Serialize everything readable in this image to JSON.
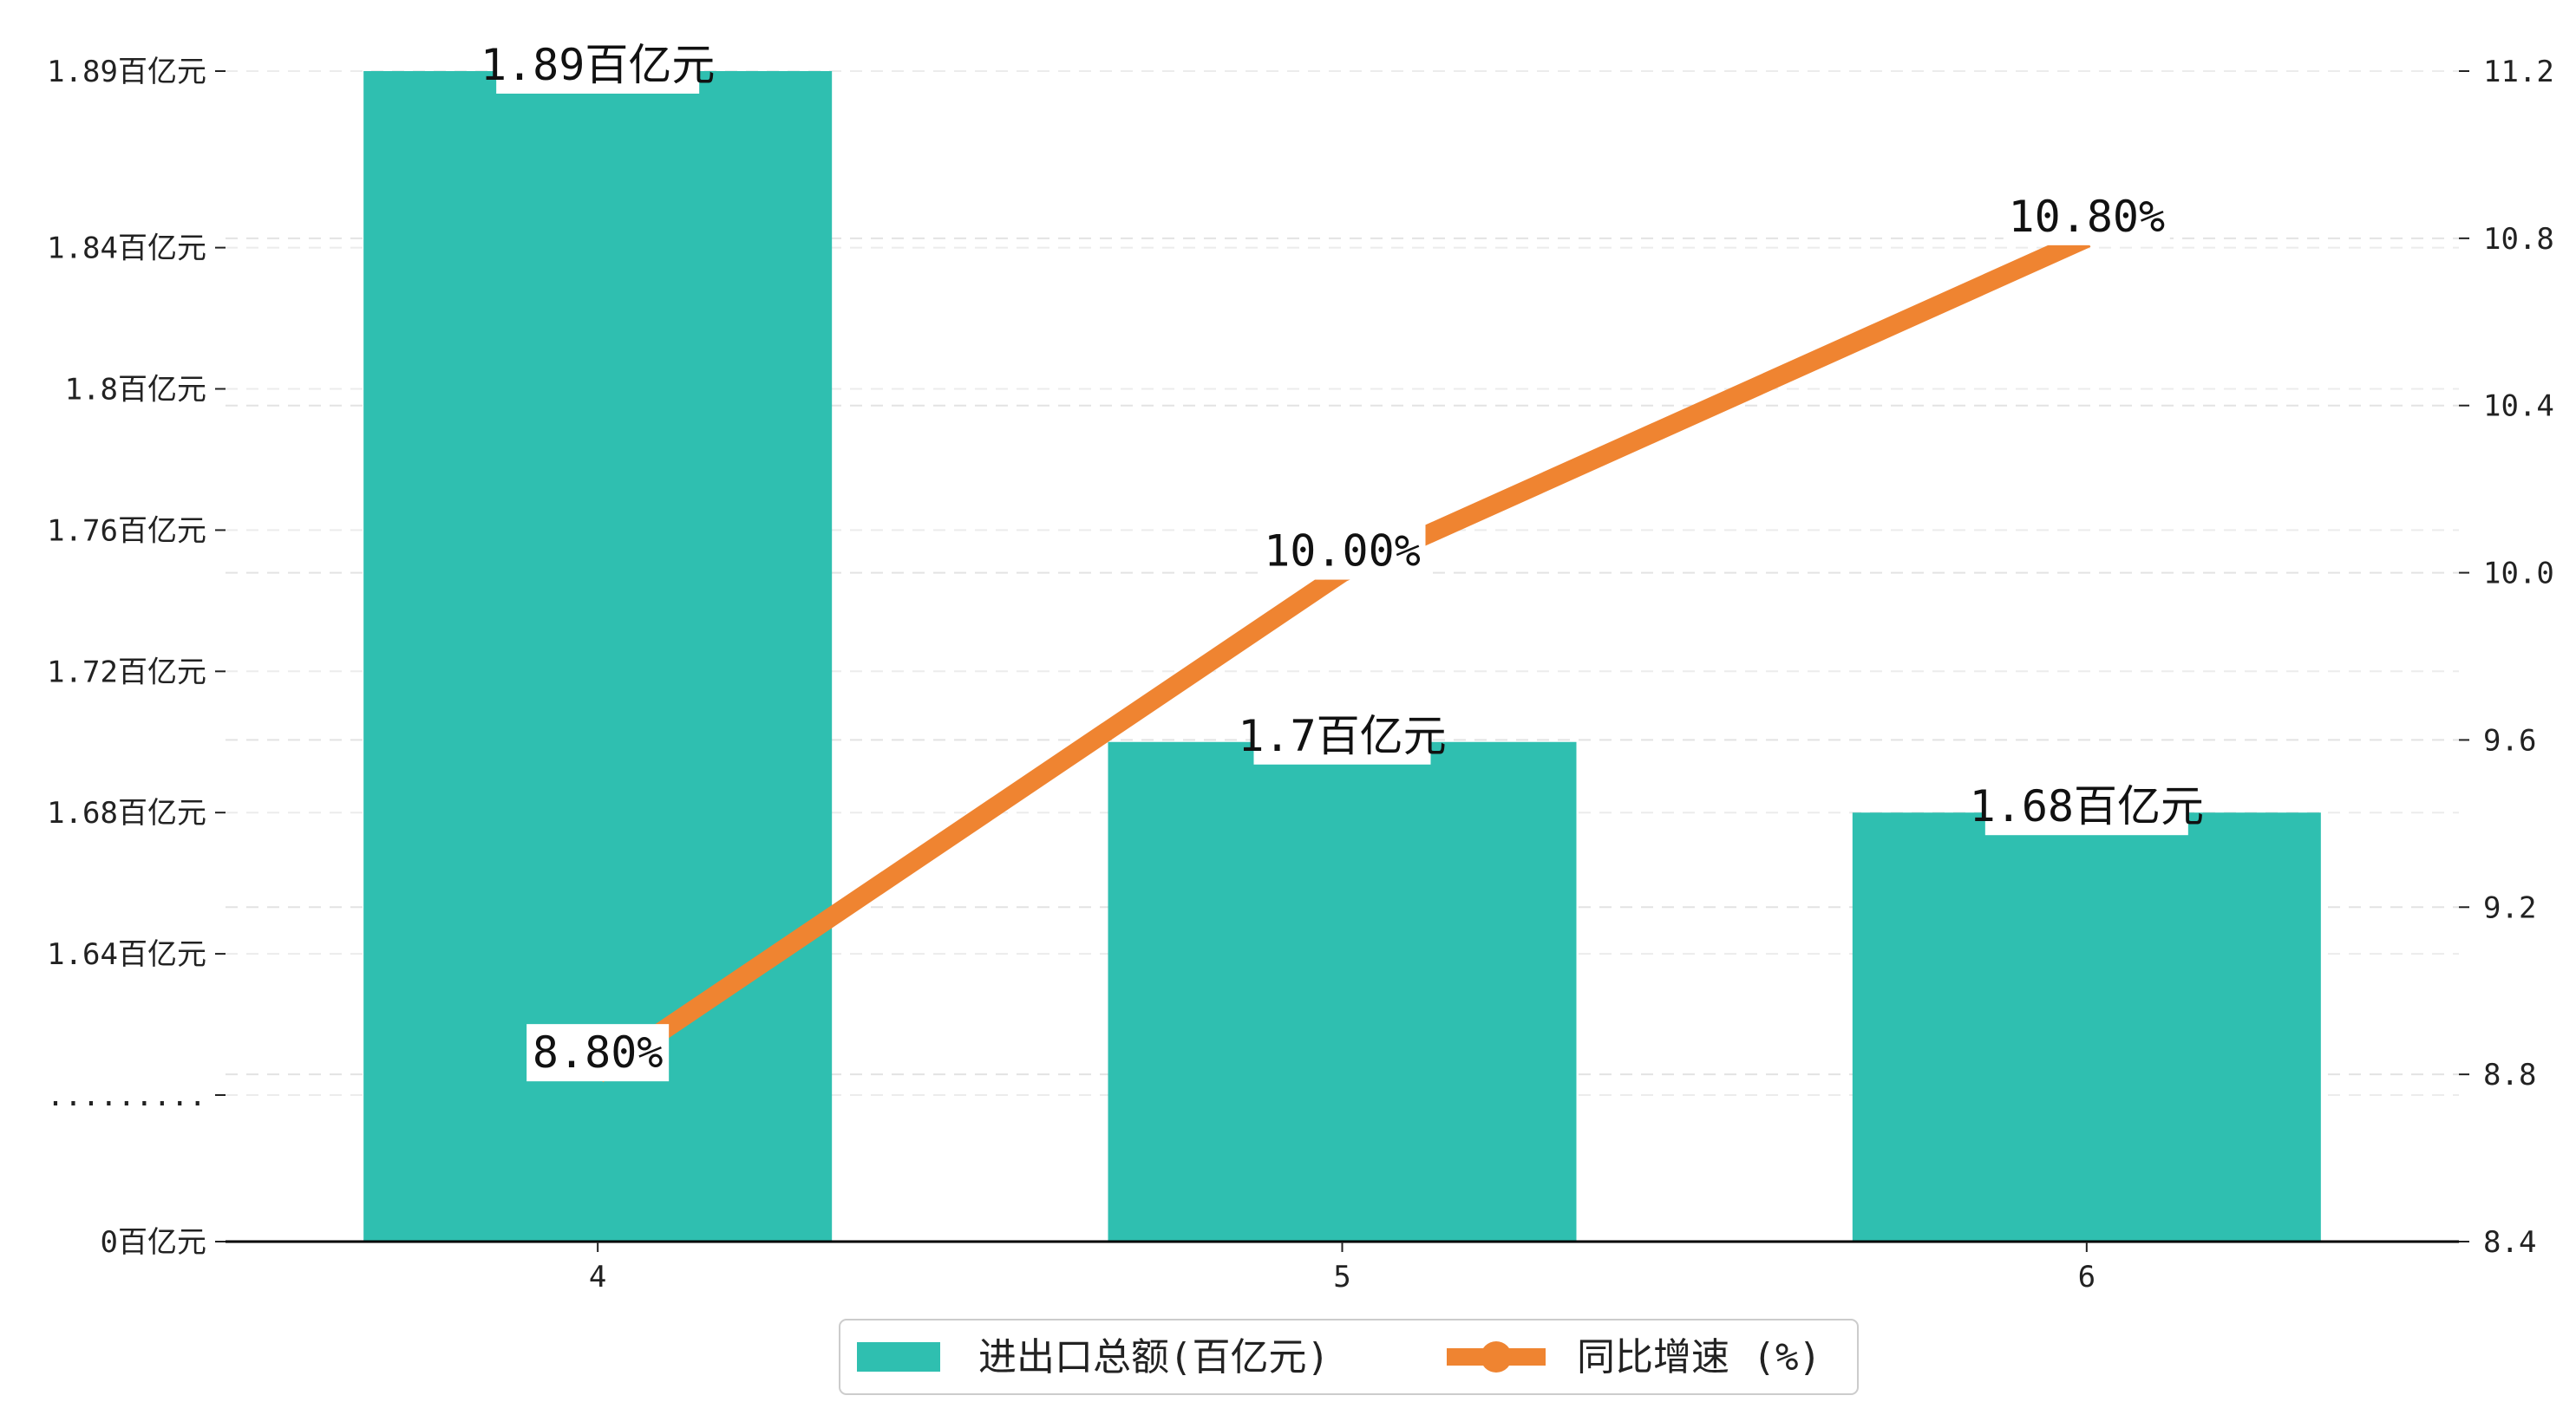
{
  "chart_data": {
    "type": "bar",
    "categories": [
      "4",
      "5",
      "6"
    ],
    "series": [
      {
        "name": "进出口总额(百亿元)",
        "type": "bar",
        "axis": "left",
        "values": [
          1.89,
          1.7,
          1.68
        ],
        "labels": [
          "1.89百亿元",
          "1.7百亿元",
          "1.68百亿元"
        ],
        "color": "#2fbfb0"
      },
      {
        "name": "同比增速 (%)",
        "type": "line",
        "axis": "right",
        "values": [
          8.8,
          10.0,
          10.8
        ],
        "labels": [
          "8.80%",
          "10.00%",
          "10.80%"
        ],
        "color": "#ef8431"
      }
    ],
    "y_left": {
      "broken_axis": true,
      "ticks": [
        {
          "value": 0,
          "label": "0百亿元"
        },
        {
          "value": 1.6,
          "label": "........."
        },
        {
          "value": 1.64,
          "label": "1.64百亿元"
        },
        {
          "value": 1.68,
          "label": "1.68百亿元"
        },
        {
          "value": 1.72,
          "label": "1.72百亿元"
        },
        {
          "value": 1.76,
          "label": "1.76百亿元"
        },
        {
          "value": 1.8,
          "label": "1.8百亿元"
        },
        {
          "value": 1.84,
          "label": "1.84百亿元"
        },
        {
          "value": 1.89,
          "label": "1.89百亿元"
        }
      ]
    },
    "y_right": {
      "ylim": [
        8.4,
        11.2
      ],
      "ticks": [
        "8.4",
        "8.8",
        "9.2",
        "9.6",
        "10.0",
        "10.4",
        "10.8",
        "11.2"
      ]
    },
    "grid": true,
    "legend_position": "bottom-center"
  }
}
